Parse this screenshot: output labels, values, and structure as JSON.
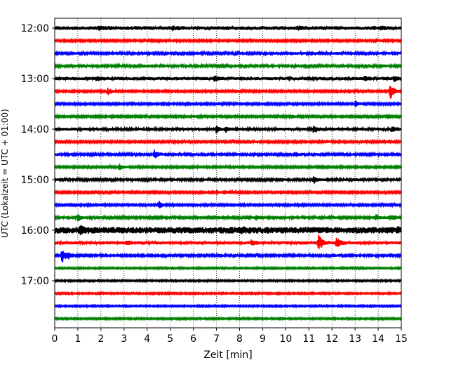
{
  "chart_data": {
    "type": "line",
    "title": "",
    "xlabel": "Zeit  [min]",
    "ylabel": "UTC (Lokalzeit = UTC + 01:00)",
    "xlim": [
      0,
      15
    ],
    "x_ticks": [
      "0",
      "1",
      "2",
      "3",
      "4",
      "5",
      "6",
      "7",
      "8",
      "9",
      "10",
      "11",
      "12",
      "13",
      "14",
      "15"
    ],
    "y_tick_labels": [
      "12:00",
      "13:00",
      "14:00",
      "15:00",
      "16:00",
      "17:00"
    ],
    "vertical_grid": "dotted at each minute",
    "trace_interval_minutes": 15,
    "color_cycle": [
      "#000000",
      "#ff0000",
      "#0000ff",
      "#008000"
    ],
    "traces": [
      {
        "start": "12:00",
        "color": "#000000",
        "noise": 0.45,
        "events": [
          [
            1.9,
            0.3
          ],
          [
            2.4,
            0.2
          ],
          [
            5.1,
            0.35
          ],
          [
            10.5,
            0.25
          ],
          [
            13.8,
            0.2
          ],
          [
            14.1,
            0.3
          ]
        ]
      },
      {
        "start": "12:15",
        "color": "#ff0000",
        "noise": 0.25,
        "events": [
          [
            3.9,
            0.15
          ],
          [
            13.9,
            0.5
          ]
        ]
      },
      {
        "start": "12:30",
        "color": "#0000ff",
        "noise": 0.3,
        "events": [
          [
            0.7,
            0.25
          ],
          [
            10.2,
            0.3
          ],
          [
            11.1,
            0.35
          ],
          [
            12.2,
            0.2
          ]
        ]
      },
      {
        "start": "12:45",
        "color": "#008000",
        "noise": 0.3,
        "events": [
          [
            1.2,
            0.25
          ],
          [
            3.8,
            0.3
          ],
          [
            13.6,
            0.3
          ],
          [
            14.2,
            0.25
          ]
        ]
      },
      {
        "start": "13:00",
        "color": "#000000",
        "noise": 0.4,
        "events": [
          [
            1.8,
            0.4
          ],
          [
            6.9,
            0.6
          ],
          [
            13.4,
            0.5
          ],
          [
            14.7,
            0.6
          ]
        ]
      },
      {
        "start": "13:15",
        "color": "#ff0000",
        "noise": 0.25,
        "events": [
          [
            2.3,
            0.9
          ],
          [
            7.8,
            0.35
          ],
          [
            14.5,
            2.2
          ]
        ]
      },
      {
        "start": "13:30",
        "color": "#0000ff",
        "noise": 0.25,
        "events": [
          [
            7.0,
            0.3
          ],
          [
            13.0,
            0.9
          ]
        ]
      },
      {
        "start": "13:45",
        "color": "#008000",
        "noise": 0.25,
        "events": [
          [
            6.0,
            0.25
          ],
          [
            10.3,
            0.3
          ]
        ]
      },
      {
        "start": "14:00",
        "color": "#000000",
        "noise": 0.35,
        "events": [
          [
            7.0,
            0.9
          ],
          [
            7.4,
            0.6
          ],
          [
            11.2,
            0.9
          ],
          [
            14.6,
            0.8
          ]
        ]
      },
      {
        "start": "14:15",
        "color": "#ff0000",
        "noise": 0.25,
        "events": [
          [
            8.5,
            0.3
          ],
          [
            11.8,
            0.3
          ]
        ]
      },
      {
        "start": "14:30",
        "color": "#0000ff",
        "noise": 0.3,
        "events": [
          [
            4.3,
            1.2
          ],
          [
            5.9,
            0.4
          ],
          [
            10.4,
            0.7
          ]
        ]
      },
      {
        "start": "14:45",
        "color": "#008000",
        "noise": 0.25,
        "events": [
          [
            2.8,
            0.7
          ]
        ]
      },
      {
        "start": "15:00",
        "color": "#000000",
        "noise": 0.3,
        "events": [
          [
            11.2,
            0.9
          ],
          [
            12.9,
            0.25
          ]
        ]
      },
      {
        "start": "15:15",
        "color": "#ff0000",
        "noise": 0.25,
        "events": [
          [
            7.0,
            0.5
          ],
          [
            7.3,
            0.5
          ]
        ]
      },
      {
        "start": "15:30",
        "color": "#0000ff",
        "noise": 0.25,
        "events": [
          [
            4.5,
            0.9
          ],
          [
            6.2,
            0.25
          ]
        ]
      },
      {
        "start": "15:45",
        "color": "#008000",
        "noise": 0.3,
        "events": [
          [
            1.0,
            0.9
          ],
          [
            8.7,
            0.5
          ],
          [
            13.9,
            0.6
          ],
          [
            14.6,
            0.6
          ]
        ]
      },
      {
        "start": "16:00",
        "color": "#000000",
        "noise": 0.8,
        "events": [
          [
            1.1,
            0.8
          ],
          [
            8.1,
            0.4
          ],
          [
            14.8,
            0.4
          ]
        ]
      },
      {
        "start": "16:15",
        "color": "#ff0000",
        "noise": 0.4,
        "events": [
          [
            3.1,
            0.4
          ],
          [
            8.5,
            0.6
          ],
          [
            11.4,
            2.0
          ],
          [
            12.2,
            1.3
          ]
        ]
      },
      {
        "start": "16:30",
        "color": "#0000ff",
        "noise": 0.3,
        "events": [
          [
            0.3,
            2.0
          ],
          [
            0.6,
            0.6
          ],
          [
            12.0,
            0.3
          ]
        ]
      },
      {
        "start": "16:45",
        "color": "#008000",
        "noise": 0.2,
        "events": []
      },
      {
        "start": "17:00",
        "color": "#000000",
        "noise": 0.2,
        "events": []
      },
      {
        "start": "17:15",
        "color": "#ff0000",
        "noise": 0.2,
        "events": []
      },
      {
        "start": "17:30",
        "color": "#0000ff",
        "noise": 0.2,
        "events": []
      },
      {
        "start": "17:45",
        "color": "#008000",
        "noise": 0.2,
        "events": []
      }
    ]
  }
}
